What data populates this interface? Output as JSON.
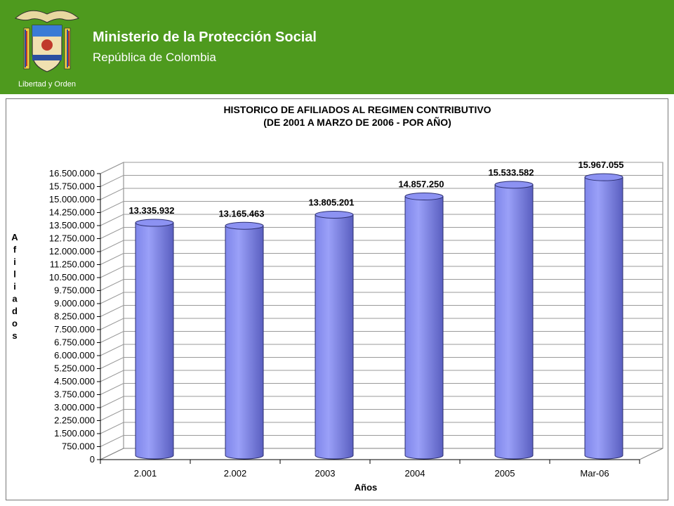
{
  "header": {
    "title": "Ministerio de la Protección Social",
    "subtitle": "República de Colombia",
    "emblem_motto": "Libertad y Orden"
  },
  "colors": {
    "header_bg": "#4e9a1e",
    "bar_fill": "#8f95f0",
    "bar_dark": "#5a5fc0"
  },
  "chart_data": {
    "type": "bar",
    "title": "HISTORICO DE AFILIADOS AL REGIMEN CONTRIBUTIVO",
    "subtitle": "(DE 2001 A MARZO DE 2006 - POR AÑO)",
    "xlabel": "Años",
    "ylabel": "Afiliados",
    "categories": [
      "2.001",
      "2.002",
      "2003",
      "2004",
      "2005",
      "Mar-06"
    ],
    "values": [
      13335932,
      13165463,
      13805201,
      14857250,
      15533582,
      15967055
    ],
    "value_labels": [
      "13.335.932",
      "13.165.463",
      "13.805.201",
      "14.857.250",
      "15.533.582",
      "15.967.055"
    ],
    "ylim": [
      0,
      16500000
    ],
    "ytick_step": 750000,
    "yticks": [
      "0",
      "750.000",
      "1.500.000",
      "2.250.000",
      "3.000.000",
      "3.750.000",
      "4.500.000",
      "5.250.000",
      "6.000.000",
      "6.750.000",
      "7.500.000",
      "8.250.000",
      "9.000.000",
      "9.750.000",
      "10.500.000",
      "11.250.000",
      "12.000.000",
      "12.750.000",
      "13.500.000",
      "14.250.000",
      "15.000.000",
      "15.750.000",
      "16.500.000"
    ],
    "grid": true,
    "style": "3d-cylinder"
  }
}
